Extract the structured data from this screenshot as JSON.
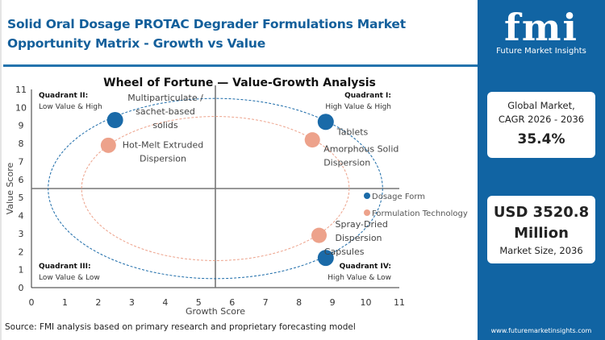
{
  "header": {
    "title": "Solid Oral Dosage PROTAC Degrader Formulations Market Opportunity Matrix - Growth vs Value"
  },
  "chart_data": {
    "type": "scatter",
    "title": "Wheel of Fortune — Value-Growth Analysis",
    "xlabel": "Growth Score",
    "ylabel": "Value Score",
    "xlim": [
      0,
      11
    ],
    "ylim": [
      0,
      11
    ],
    "xticks": [
      "0",
      "1",
      "2",
      "3",
      "4",
      "5",
      "6",
      "7",
      "8",
      "9",
      "10",
      "11"
    ],
    "yticks": [
      "0",
      "1",
      "2",
      "3",
      "4",
      "5",
      "6",
      "7",
      "8",
      "9",
      "10",
      "11"
    ],
    "grid": false,
    "divider": {
      "x": 5.5,
      "y": 5.5
    },
    "legend_position": "right",
    "quadrants": [
      {
        "title": "Quadrant II:",
        "subtitle": "Low Value & High"
      },
      {
        "title": "Quadrant I:",
        "subtitle": "High Value & High"
      },
      {
        "title": "Quadrant III:",
        "subtitle": "Low Value & Low"
      },
      {
        "title": "Quadrant IV:",
        "subtitle": "High Value & Low"
      }
    ],
    "series": [
      {
        "name": "Dosage Form",
        "color": "#1a6aa8",
        "ellipse": {
          "cx": 5.5,
          "cy": 5.5,
          "rx": 5,
          "ry": 5
        },
        "points": [
          {
            "label": [
              "Multiparticulate /",
              "sachet-based",
              "solids"
            ],
            "x": 2.5,
            "y": 9.3
          },
          {
            "label": [
              "Tablets"
            ],
            "x": 8.8,
            "y": 9.2
          },
          {
            "label": [
              "Capsules"
            ],
            "x": 8.8,
            "y": 1.65
          }
        ]
      },
      {
        "name": "Formulation Technology",
        "color": "#eda28b",
        "ellipse": {
          "cx": 5.5,
          "cy": 5.5,
          "rx": 4,
          "ry": 4
        },
        "points": [
          {
            "label": [
              "Hot-Melt Extruded",
              "Dispersion"
            ],
            "x": 2.3,
            "y": 7.9
          },
          {
            "label": [
              "Amorphous Solid",
              "Dispersion"
            ],
            "x": 8.4,
            "y": 8.2
          },
          {
            "label": [
              "Spray-Dried",
              "Dispersion"
            ],
            "x": 8.6,
            "y": 2.9
          }
        ]
      }
    ]
  },
  "source": "Source: FMI analysis based on primary research and proprietary forecasting model",
  "sidebar": {
    "logo_mark": "fmi",
    "logo_text": "Future Market Insights",
    "cagr_label_1": "Global Market,",
    "cagr_label_2": "CAGR 2026 - 2036",
    "cagr_value": "35.4%",
    "size_value_1": "USD 3520.8",
    "size_value_2": "Million",
    "size_label": "Market Size, 2036",
    "url": "www.futuremarketinsights.com",
    "color": "#1164a3"
  }
}
